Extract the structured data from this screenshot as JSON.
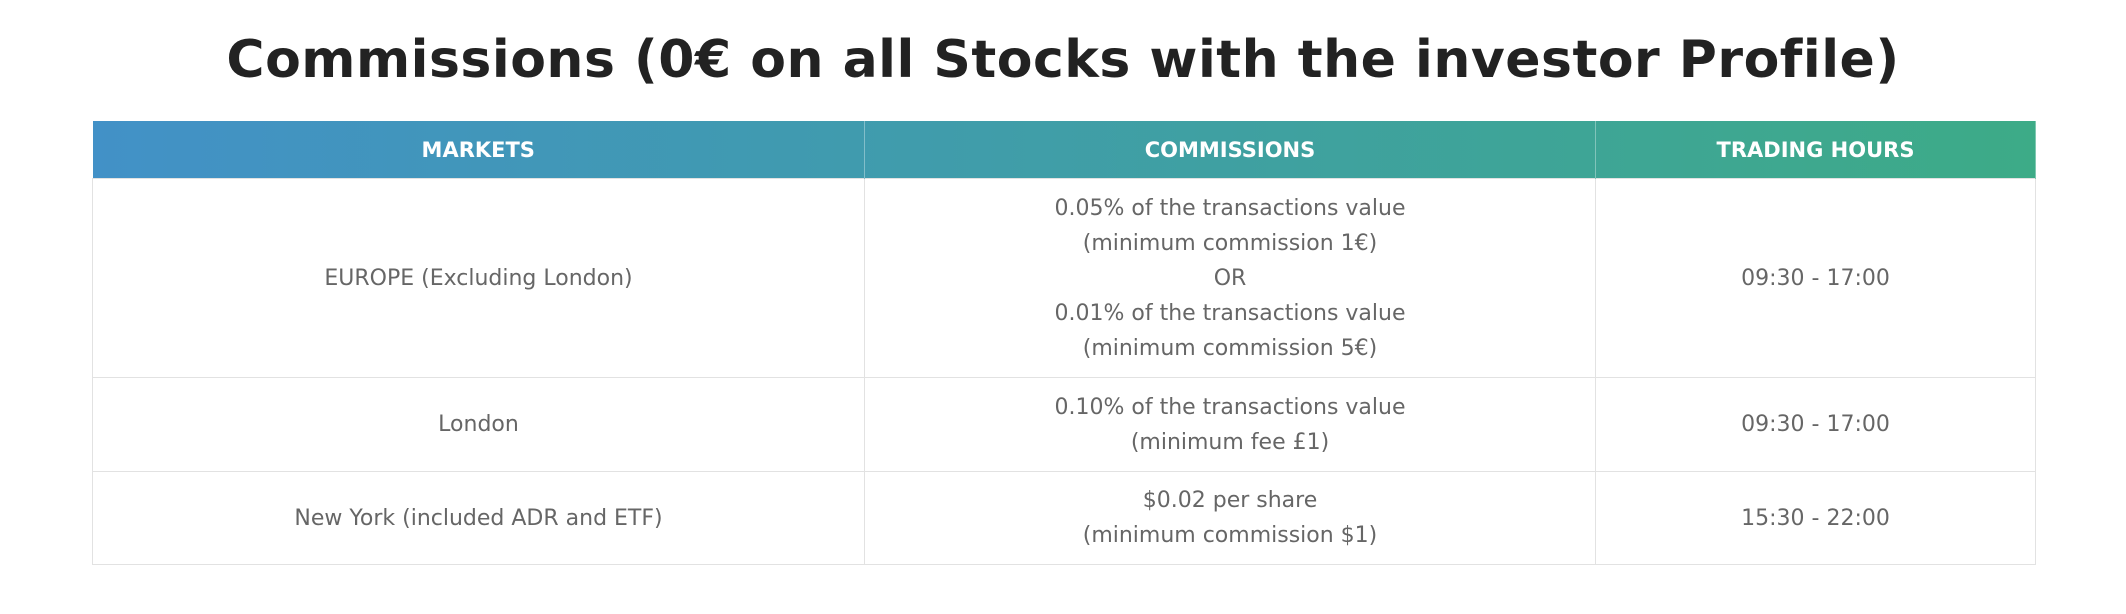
{
  "header": {
    "title": "Commissions (0€ on all Stocks with the investor Profile)"
  },
  "table": {
    "columns": [
      "MARKETS",
      "COMMISSIONS",
      "TRADING HOURS"
    ],
    "rows": [
      [
        "EUROPE (Excluding London)",
        [
          "0.05% of the transactions value",
          "(minimum commission 1€)",
          "OR",
          "0.01% of the transactions value",
          "(minimum commission 5€)"
        ],
        "09:30 - 17:00"
      ],
      [
        "London",
        [
          "0.10% of the transactions value",
          "(minimum fee £1)"
        ],
        "09:30 - 17:00"
      ],
      [
        "New York (included ADR and ETF)",
        [
          "$0.02 per share",
          "(minimum commission $1)"
        ],
        "15:30 - 22:00"
      ]
    ]
  }
}
